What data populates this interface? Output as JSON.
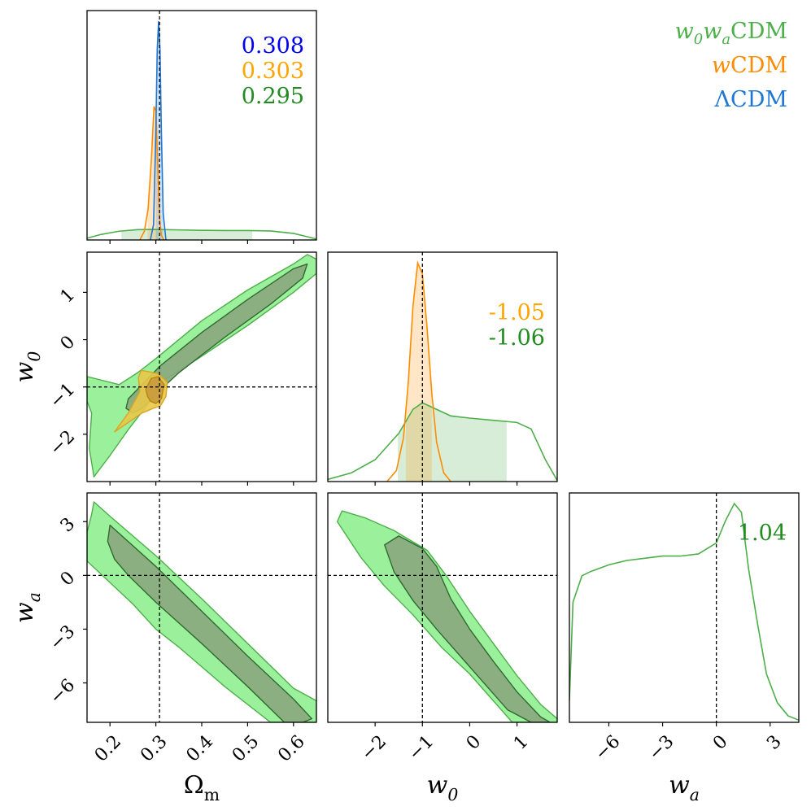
{
  "chart_data": {
    "type": "corner",
    "parameters": [
      {
        "key": "Om",
        "label_base": "Ω",
        "label_sub": "m",
        "range": [
          0.15,
          0.65
        ],
        "ticks": [
          0.2,
          0.3,
          0.4,
          0.5,
          0.6
        ],
        "tick_labels": [
          "0.2",
          "0.3",
          "0.4",
          "0.5",
          "0.6"
        ],
        "truth": 0.308
      },
      {
        "key": "w0",
        "label_base": "w",
        "label_sub": "0",
        "range": [
          -3.0,
          1.85
        ],
        "ticks": [
          -2,
          -1,
          0,
          1
        ],
        "tick_labels": [
          "−2",
          "−1",
          "0",
          "1"
        ],
        "truth": -1.0
      },
      {
        "key": "wa",
        "label_base": "w",
        "label_sub": "a",
        "range": [
          -8.2,
          4.6
        ],
        "ticks": [
          -6,
          -3,
          0,
          3
        ],
        "tick_labels": [
          "−6",
          "−3",
          "0",
          "3"
        ],
        "truth": 0.0
      }
    ],
    "legend": [
      {
        "base": "w",
        "sub": "0",
        "base2": "w",
        "sub2": "a",
        "suffix": "CDM",
        "color": "#4daf4a"
      },
      {
        "base": "w",
        "sub": "",
        "base2": "",
        "sub2": "",
        "suffix": "CDM",
        "color": "#ff8c00"
      },
      {
        "base": "Λ",
        "sub": "",
        "base2": "",
        "sub2": "",
        "suffix": "CDM",
        "color": "#1f77d4"
      }
    ],
    "annotations": {
      "Om": [
        {
          "text": "0.308",
          "color": "#0000ee"
        },
        {
          "text": "0.303",
          "color": "#ffa500"
        },
        {
          "text": "0.295",
          "color": "#228b22"
        }
      ],
      "w0": [
        {
          "text": "-1.05",
          "color": "#ffa500"
        },
        {
          "text": "-1.06",
          "color": "#228b22"
        }
      ],
      "wa": [
        {
          "text": "1.04",
          "color": "#228b22"
        }
      ]
    },
    "marginals": {
      "Om": [
        {
          "model": "w0waCDM",
          "color": "#4daf4a",
          "interval": [
            0.225,
            0.51
          ],
          "points": [
            [
              0.15,
              0.008
            ],
            [
              0.18,
              0.025
            ],
            [
              0.22,
              0.04
            ],
            [
              0.26,
              0.047
            ],
            [
              0.3,
              0.048
            ],
            [
              0.35,
              0.046
            ],
            [
              0.4,
              0.044
            ],
            [
              0.45,
              0.043
            ],
            [
              0.5,
              0.043
            ],
            [
              0.55,
              0.041
            ],
            [
              0.6,
              0.03
            ],
            [
              0.63,
              0.015
            ],
            [
              0.65,
              0.004
            ]
          ]
        },
        {
          "model": "wCDM",
          "color": "#ff8c00",
          "interval": [
            0.282,
            0.305
          ],
          "points": [
            [
              0.265,
              0.0
            ],
            [
              0.275,
              0.04
            ],
            [
              0.283,
              0.14
            ],
            [
              0.29,
              0.36
            ],
            [
              0.296,
              0.61
            ],
            [
              0.3,
              0.59
            ],
            [
              0.304,
              0.35
            ],
            [
              0.308,
              0.1
            ],
            [
              0.312,
              0.02
            ],
            [
              0.318,
              0.0
            ]
          ]
        },
        {
          "model": "LCDM",
          "color": "#1f77d4",
          "interval": [
            0.3,
            0.316
          ],
          "points": [
            [
              0.288,
              0.0
            ],
            [
              0.295,
              0.07
            ],
            [
              0.3,
              0.5
            ],
            [
              0.303,
              0.87
            ],
            [
              0.306,
              1.0
            ],
            [
              0.309,
              0.87
            ],
            [
              0.312,
              0.5
            ],
            [
              0.316,
              0.12
            ],
            [
              0.322,
              0.0
            ]
          ]
        }
      ],
      "w0": [
        {
          "model": "w0waCDM",
          "color": "#4daf4a",
          "interval": [
            -1.52,
            0.78
          ],
          "points": [
            [
              -3.0,
              0.01
            ],
            [
              -2.5,
              0.04
            ],
            [
              -2.0,
              0.1
            ],
            [
              -1.5,
              0.22
            ],
            [
              -1.2,
              0.33
            ],
            [
              -1.0,
              0.36
            ],
            [
              -0.7,
              0.33
            ],
            [
              -0.4,
              0.3
            ],
            [
              0.0,
              0.29
            ],
            [
              0.5,
              0.28
            ],
            [
              1.0,
              0.27
            ],
            [
              1.3,
              0.24
            ],
            [
              1.6,
              0.1
            ],
            [
              1.85,
              0.005
            ]
          ]
        },
        {
          "model": "wCDM",
          "color": "#ff8c00",
          "interval": [
            -1.35,
            -0.8
          ],
          "points": [
            [
              -1.75,
              0.0
            ],
            [
              -1.55,
              0.05
            ],
            [
              -1.4,
              0.2
            ],
            [
              -1.3,
              0.45
            ],
            [
              -1.2,
              0.8
            ],
            [
              -1.1,
              1.0
            ],
            [
              -1.0,
              0.95
            ],
            [
              -0.9,
              0.7
            ],
            [
              -0.8,
              0.4
            ],
            [
              -0.7,
              0.18
            ],
            [
              -0.55,
              0.04
            ],
            [
              -0.4,
              0.0
            ]
          ]
        }
      ],
      "wa": [
        {
          "model": "w0waCDM",
          "color": "#4daf4a",
          "interval": [],
          "points": [
            [
              -8.2,
              0.1
            ],
            [
              -8.0,
              0.55
            ],
            [
              -7.5,
              0.67
            ],
            [
              -7.0,
              0.69
            ],
            [
              -6.0,
              0.72
            ],
            [
              -5.0,
              0.74
            ],
            [
              -4.0,
              0.75
            ],
            [
              -3.0,
              0.76
            ],
            [
              -2.0,
              0.76
            ],
            [
              -1.0,
              0.77
            ],
            [
              0.0,
              0.82
            ],
            [
              0.5,
              0.92
            ],
            [
              1.0,
              1.0
            ],
            [
              1.4,
              0.96
            ],
            [
              1.8,
              0.7
            ],
            [
              2.3,
              0.45
            ],
            [
              2.8,
              0.22
            ],
            [
              3.4,
              0.09
            ],
            [
              4.0,
              0.03
            ],
            [
              4.6,
              0.01
            ]
          ]
        }
      ]
    },
    "contours": {
      "w0|Om": [
        {
          "model": "w0waCDM",
          "level": "95%",
          "color": "#4daf4a",
          "fill": "#90ee90",
          "points": [
            [
              0.15,
              -0.78
            ],
            [
              0.22,
              -0.95
            ],
            [
              0.26,
              -0.7
            ],
            [
              0.3,
              -0.4
            ],
            [
              0.4,
              0.4
            ],
            [
              0.5,
              1.05
            ],
            [
              0.6,
              1.6
            ],
            [
              0.63,
              1.8
            ],
            [
              0.65,
              1.7
            ],
            [
              0.65,
              1.4
            ],
            [
              0.6,
              1.0
            ],
            [
              0.5,
              0.3
            ],
            [
              0.4,
              -0.35
            ],
            [
              0.32,
              -0.85
            ],
            [
              0.28,
              -1.4
            ],
            [
              0.24,
              -1.9
            ],
            [
              0.2,
              -2.45
            ],
            [
              0.165,
              -2.9
            ],
            [
              0.155,
              -2.3
            ],
            [
              0.16,
              -1.55
            ],
            [
              0.15,
              -1.3
            ]
          ]
        },
        {
          "model": "w0waCDM",
          "level": "68%",
          "color": "#2f6b2f",
          "fill": "#8aa77e",
          "points": [
            [
              0.24,
              -1.25
            ],
            [
              0.27,
              -0.95
            ],
            [
              0.31,
              -0.55
            ],
            [
              0.4,
              0.15
            ],
            [
              0.5,
              0.85
            ],
            [
              0.6,
              1.5
            ],
            [
              0.63,
              1.6
            ],
            [
              0.62,
              1.3
            ],
            [
              0.55,
              0.75
            ],
            [
              0.45,
              0.05
            ],
            [
              0.35,
              -0.7
            ],
            [
              0.3,
              -1.15
            ],
            [
              0.27,
              -1.45
            ],
            [
              0.25,
              -1.55
            ],
            [
              0.235,
              -1.45
            ]
          ]
        },
        {
          "model": "wCDM",
          "level": "95%",
          "color": "#daa520",
          "fill": "#e8c84a",
          "points": [
            [
              0.21,
              -1.95
            ],
            [
              0.24,
              -1.55
            ],
            [
              0.265,
              -1.1
            ],
            [
              0.262,
              -0.8
            ],
            [
              0.268,
              -0.65
            ],
            [
              0.285,
              -0.68
            ],
            [
              0.305,
              -0.72
            ],
            [
              0.325,
              -0.9
            ],
            [
              0.322,
              -1.2
            ],
            [
              0.31,
              -1.4
            ],
            [
              0.295,
              -1.45
            ],
            [
              0.27,
              -1.55
            ],
            [
              0.24,
              -1.75
            ]
          ]
        },
        {
          "model": "wCDM",
          "level": "68%",
          "color": "#b8860b",
          "fill": "#c99a3c",
          "points": [
            [
              0.278,
              -1.05
            ],
            [
              0.29,
              -0.82
            ],
            [
              0.305,
              -0.78
            ],
            [
              0.318,
              -0.95
            ],
            [
              0.312,
              -1.25
            ],
            [
              0.3,
              -1.35
            ],
            [
              0.288,
              -1.3
            ],
            [
              0.282,
              -1.2
            ]
          ]
        }
      ],
      "wa|Om": [
        {
          "model": "w0waCDM",
          "level": "95%",
          "color": "#4daf4a",
          "fill": "#90ee90",
          "points": [
            [
              0.15,
              2.4
            ],
            [
              0.16,
              3.4
            ],
            [
              0.165,
              4.1
            ],
            [
              0.2,
              3.3
            ],
            [
              0.3,
              1.1
            ],
            [
              0.4,
              -1.3
            ],
            [
              0.5,
              -3.8
            ],
            [
              0.6,
              -6.3
            ],
            [
              0.65,
              -7.0
            ],
            [
              0.65,
              -8.2
            ],
            [
              0.55,
              -8.2
            ],
            [
              0.45,
              -6.2
            ],
            [
              0.35,
              -4.0
            ],
            [
              0.3,
              -3.0
            ],
            [
              0.25,
              -1.6
            ],
            [
              0.15,
              0.8
            ]
          ]
        },
        {
          "model": "w0waCDM",
          "level": "68%",
          "color": "#2f6b2f",
          "fill": "#8aa77e",
          "points": [
            [
              0.2,
              2.8
            ],
            [
              0.3,
              0.5
            ],
            [
              0.4,
              -2.0
            ],
            [
              0.5,
              -4.5
            ],
            [
              0.6,
              -6.9
            ],
            [
              0.64,
              -8.0
            ],
            [
              0.62,
              -8.2
            ],
            [
              0.58,
              -8.2
            ],
            [
              0.5,
              -6.2
            ],
            [
              0.4,
              -3.8
            ],
            [
              0.3,
              -1.5
            ],
            [
              0.24,
              0.0
            ],
            [
              0.21,
              0.9
            ],
            [
              0.195,
              1.9
            ]
          ]
        }
      ],
      "wa|w0": [
        {
          "model": "w0waCDM",
          "level": "95%",
          "color": "#4daf4a",
          "fill": "#90ee90",
          "points": [
            [
              -2.8,
              3.0
            ],
            [
              -2.7,
              3.6
            ],
            [
              -2.2,
              3.2
            ],
            [
              -1.6,
              2.5
            ],
            [
              -0.9,
              1.4
            ],
            [
              -0.5,
              0.0
            ],
            [
              0.0,
              -2.0
            ],
            [
              0.5,
              -3.8
            ],
            [
              1.0,
              -5.6
            ],
            [
              1.5,
              -7.2
            ],
            [
              1.85,
              -8.0
            ],
            [
              1.85,
              -8.2
            ],
            [
              0.9,
              -8.2
            ],
            [
              0.5,
              -7.0
            ],
            [
              0.0,
              -5.5
            ],
            [
              -0.6,
              -4.0
            ],
            [
              -1.2,
              -2.2
            ],
            [
              -1.8,
              -0.6
            ],
            [
              -2.3,
              1.0
            ]
          ]
        },
        {
          "model": "w0waCDM",
          "level": "68%",
          "color": "#2f6b2f",
          "fill": "#8aa77e",
          "points": [
            [
              -1.8,
              1.7
            ],
            [
              -1.5,
              2.2
            ],
            [
              -1.0,
              1.5
            ],
            [
              -0.7,
              0.5
            ],
            [
              -0.4,
              -1.3
            ],
            [
              0.0,
              -3.0
            ],
            [
              0.5,
              -4.8
            ],
            [
              1.0,
              -6.5
            ],
            [
              1.5,
              -7.9
            ],
            [
              1.7,
              -8.2
            ],
            [
              1.3,
              -8.2
            ],
            [
              0.8,
              -7.5
            ],
            [
              0.3,
              -6.0
            ],
            [
              -0.2,
              -4.5
            ],
            [
              -0.7,
              -3.0
            ],
            [
              -1.2,
              -1.4
            ],
            [
              -1.6,
              0.2
            ]
          ]
        }
      ]
    }
  }
}
